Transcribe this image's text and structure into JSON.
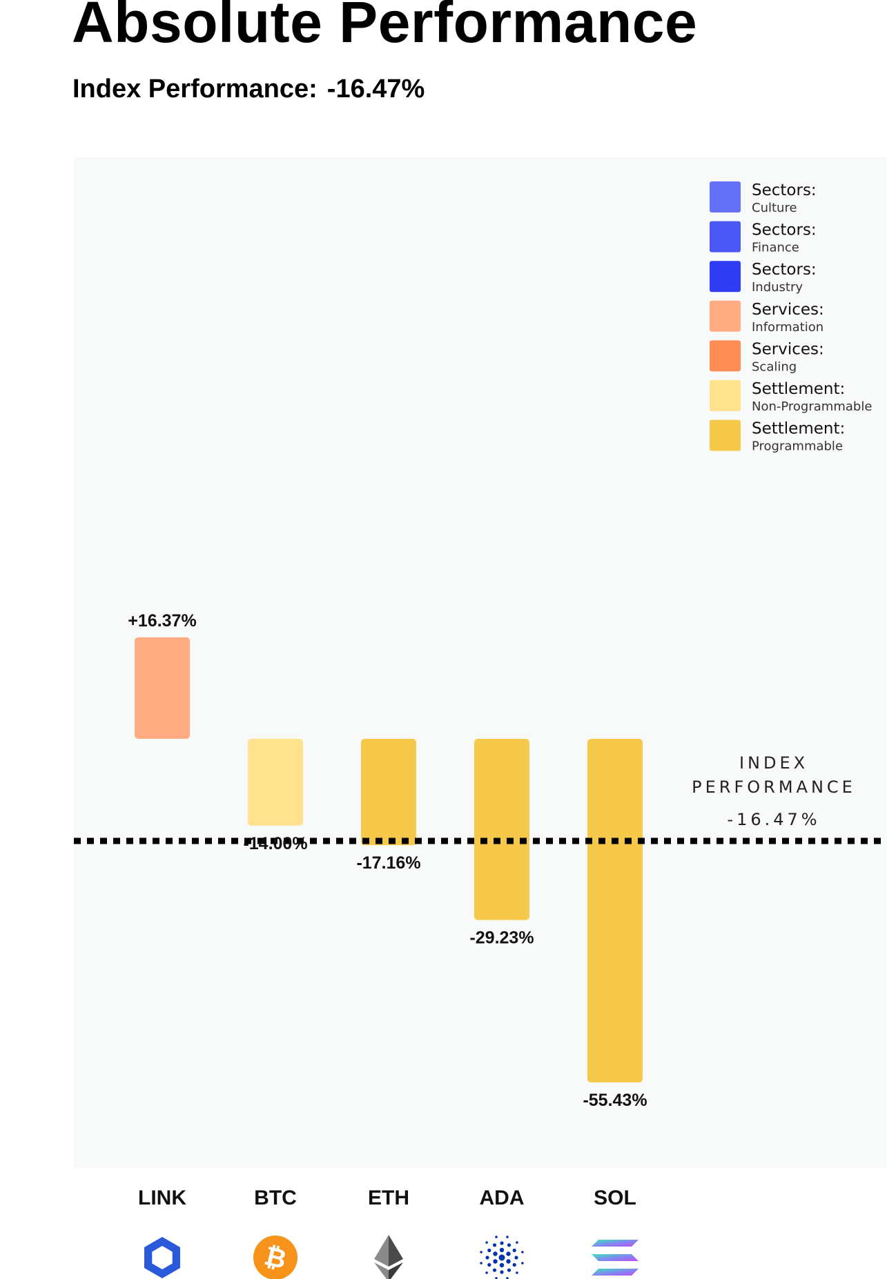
{
  "header": {
    "title": "Absolute Performance",
    "index_label": "Index Performance:",
    "index_value": "-16.47%"
  },
  "index_line": {
    "line1": "INDEX",
    "line2": "PERFORMANCE",
    "value_label": "-16.47%",
    "value": -16.47
  },
  "legend": [
    {
      "title": "Sectors:",
      "sub": "Culture",
      "color": "#6470f5"
    },
    {
      "title": "Sectors:",
      "sub": "Finance",
      "color": "#4b58f6"
    },
    {
      "title": "Sectors:",
      "sub": "Industry",
      "color": "#2f3df4"
    },
    {
      "title": "Services:",
      "sub": "Information",
      "color": "#ffac82"
    },
    {
      "title": "Services:",
      "sub": "Scaling",
      "color": "#ff8d55"
    },
    {
      "title": "Settlement:",
      "sub": "Non-Programmable",
      "color": "#ffe18e"
    },
    {
      "title": "Settlement:",
      "sub": "Programmable",
      "color": "#f7c94b"
    }
  ],
  "chart_data": {
    "type": "bar",
    "categories": [
      "LINK",
      "BTC",
      "ETH",
      "ADA",
      "SOL"
    ],
    "values": [
      16.37,
      -14.0,
      -17.16,
      -29.23,
      -55.43
    ],
    "value_labels": [
      "+16.37%",
      "-14.00%",
      "-17.16%",
      "-29.23%",
      "-55.43%"
    ],
    "colors": [
      "#ffac82",
      "#ffe18e",
      "#f7c94b",
      "#f7c94b",
      "#f7c94b"
    ],
    "icons": [
      "chainlink-icon",
      "bitcoin-icon",
      "ethereum-icon",
      "cardano-icon",
      "solana-icon"
    ],
    "reference_line": -16.47,
    "legend_position": "top-right",
    "grid": false
  }
}
